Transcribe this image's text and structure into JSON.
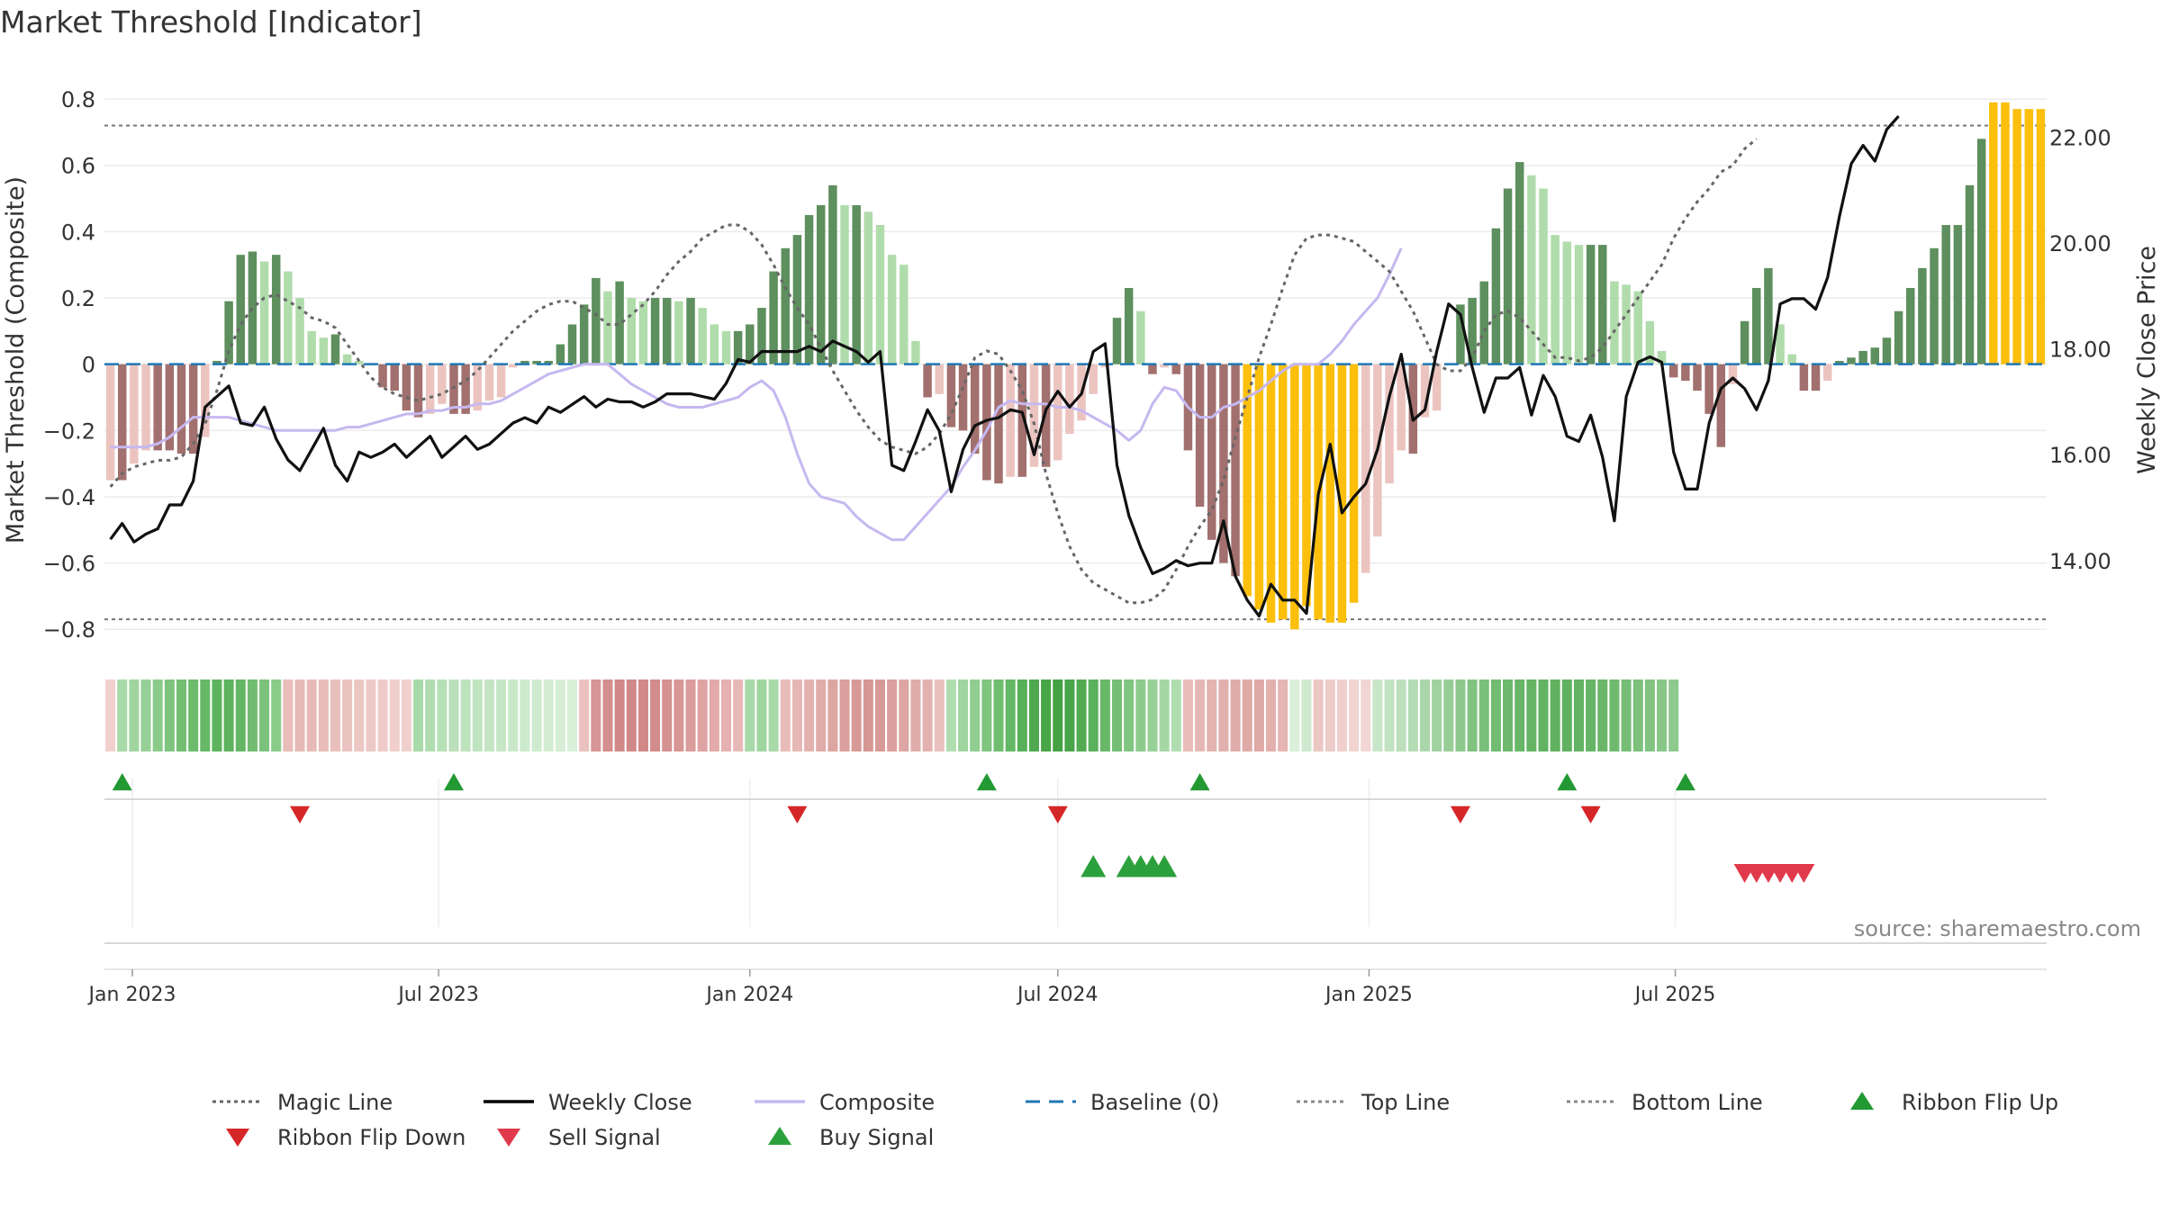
{
  "chart_data": {
    "type": "bar",
    "title": "Market Threshold [Indicator]",
    "ylabel_left": "Market Threshold (Composite)",
    "ylabel_right": "Weekly Close Price",
    "ylim_left": [
      -0.87,
      0.86
    ],
    "ylim_right": [
      12.26,
      23.1
    ],
    "yticks_left": [
      0.8,
      0.6,
      0.4,
      0.2,
      0,
      -0.2,
      -0.4,
      -0.6,
      -0.8
    ],
    "yticks_left_labels": [
      "0.8",
      "0.6",
      "0.4",
      "0.2",
      "0",
      "−0.2",
      "−0.4",
      "−0.6",
      "−0.8"
    ],
    "yticks_right": [
      22,
      20,
      18,
      16,
      14
    ],
    "yticks_right_labels": [
      "22.00",
      "20.00",
      "18.00",
      "16.00",
      "14.00"
    ],
    "x_start": "2022-12-19",
    "x_step_days": 7,
    "x_ticks": [
      {
        "date": "2023-01-01",
        "label": "Jan 2023"
      },
      {
        "date": "2023-07-01",
        "label": "Jul 2023"
      },
      {
        "date": "2024-01-01",
        "label": "Jan 2024"
      },
      {
        "date": "2024-07-01",
        "label": "Jul 2024"
      },
      {
        "date": "2025-01-01",
        "label": "Jan 2025"
      },
      {
        "date": "2025-07-01",
        "label": "Jul 2025"
      }
    ],
    "top_line": 0.72,
    "bottom_line": -0.77,
    "baseline": 0,
    "composite_bars": [
      -0.35,
      -0.35,
      -0.3,
      -0.26,
      -0.26,
      -0.26,
      -0.27,
      -0.27,
      -0.22,
      0.01,
      0.19,
      0.33,
      0.34,
      0.31,
      0.33,
      0.28,
      0.2,
      0.1,
      0.08,
      0.09,
      0.03,
      0.01,
      0.0,
      -0.07,
      -0.08,
      -0.14,
      -0.16,
      -0.15,
      -0.12,
      -0.15,
      -0.15,
      -0.14,
      -0.11,
      -0.1,
      -0.01,
      0.01,
      0.01,
      0.01,
      0.06,
      0.12,
      0.18,
      0.26,
      0.22,
      0.25,
      0.2,
      0.19,
      0.2,
      0.2,
      0.19,
      0.2,
      0.17,
      0.12,
      0.1,
      0.1,
      0.12,
      0.17,
      0.28,
      0.35,
      0.39,
      0.45,
      0.48,
      0.54,
      0.48,
      0.48,
      0.46,
      0.42,
      0.33,
      0.3,
      0.07,
      -0.1,
      -0.09,
      -0.19,
      -0.2,
      -0.27,
      -0.35,
      -0.36,
      -0.34,
      -0.34,
      -0.31,
      -0.31,
      -0.29,
      -0.21,
      -0.17,
      -0.09,
      -0.01,
      0.14,
      0.23,
      0.16,
      -0.03,
      -0.01,
      -0.03,
      -0.26,
      -0.43,
      -0.53,
      -0.6,
      -0.64,
      -0.7,
      -0.74,
      -0.78,
      -0.77,
      -0.8,
      -0.73,
      -0.77,
      -0.78,
      -0.78,
      -0.72,
      -0.63,
      -0.52,
      -0.36,
      -0.26,
      -0.27,
      -0.16,
      -0.14,
      0.0,
      0.18,
      0.2,
      0.25,
      0.41,
      0.53,
      0.61,
      0.57,
      0.53,
      0.39,
      0.37,
      0.36,
      0.36,
      0.36,
      0.25,
      0.24,
      0.22,
      0.13,
      0.04,
      -0.04,
      -0.05,
      -0.08,
      -0.15,
      -0.25,
      -0.06,
      0.13,
      0.23,
      0.29,
      0.12,
      0.03,
      -0.08,
      -0.08,
      -0.05,
      0.01,
      0.02,
      0.04,
      0.05,
      0.08,
      0.16,
      0.23,
      0.29,
      0.35,
      0.42,
      0.42,
      0.54,
      0.68,
      0.79,
      0.79,
      0.77,
      0.77,
      0.77
    ],
    "bar_colors": {
      "strong_up": "#5e8f5e",
      "weak_up": "#b0dcab",
      "strong_down": "#a2706e",
      "weak_down": "#ebc4c0",
      "extreme": "#fbbf0c"
    },
    "weekly_close": [
      14.4,
      14.7,
      14.35,
      14.5,
      14.6,
      15.05,
      15.05,
      15.5,
      16.9,
      17.1,
      17.3,
      16.6,
      16.55,
      16.9,
      16.3,
      15.9,
      15.7,
      16.1,
      16.5,
      15.8,
      15.5,
      16.05,
      15.95,
      16.05,
      16.2,
      15.95,
      16.15,
      16.35,
      15.95,
      16.15,
      16.35,
      16.1,
      16.2,
      16.4,
      16.6,
      16.7,
      16.6,
      16.9,
      16.8,
      16.95,
      17.1,
      16.9,
      17.05,
      17.0,
      17.0,
      16.9,
      17.0,
      17.15,
      17.15,
      17.15,
      17.1,
      17.05,
      17.35,
      17.8,
      17.75,
      17.95,
      17.95,
      17.95,
      17.95,
      18.05,
      17.95,
      18.15,
      18.05,
      17.95,
      17.75,
      17.95,
      15.8,
      15.7,
      16.25,
      16.85,
      16.45,
      15.3,
      16.1,
      16.55,
      16.65,
      16.7,
      16.85,
      16.8,
      16.0,
      16.85,
      17.2,
      16.9,
      17.15,
      17.95,
      18.1,
      15.8,
      14.85,
      14.25,
      13.75,
      13.85,
      14.0,
      13.9,
      13.95,
      13.95,
      14.75,
      13.7,
      13.25,
      12.95,
      13.55,
      13.25,
      13.25,
      13.0,
      15.25,
      16.2,
      14.9,
      15.2,
      15.45,
      16.1,
      17.1,
      17.9,
      16.65,
      16.85,
      17.95,
      18.85,
      18.65,
      17.65,
      16.8,
      17.45,
      17.45,
      17.65,
      16.75,
      17.5,
      17.1,
      16.35,
      16.25,
      16.75,
      15.95,
      14.75,
      17.1,
      17.75,
      17.85,
      17.75,
      16.05,
      15.35,
      15.35,
      16.6,
      17.25,
      17.45,
      17.25,
      16.85,
      17.4,
      18.85,
      18.95,
      18.95,
      18.75,
      19.35,
      20.5,
      21.5,
      21.85,
      21.55,
      22.15,
      22.4
    ],
    "magic_line": [
      -0.37,
      -0.33,
      -0.31,
      -0.3,
      -0.29,
      -0.29,
      -0.28,
      -0.24,
      -0.18,
      -0.08,
      0.04,
      0.12,
      0.17,
      0.2,
      0.21,
      0.19,
      0.17,
      0.14,
      0.13,
      0.11,
      0.06,
      0.01,
      -0.04,
      -0.07,
      -0.09,
      -0.1,
      -0.11,
      -0.1,
      -0.09,
      -0.07,
      -0.05,
      -0.02,
      0.02,
      0.06,
      0.1,
      0.13,
      0.16,
      0.18,
      0.19,
      0.19,
      0.17,
      0.15,
      0.12,
      0.12,
      0.15,
      0.18,
      0.22,
      0.27,
      0.31,
      0.34,
      0.38,
      0.4,
      0.42,
      0.42,
      0.4,
      0.36,
      0.3,
      0.23,
      0.17,
      0.12,
      0.05,
      -0.02,
      -0.08,
      -0.14,
      -0.19,
      -0.23,
      -0.25,
      -0.26,
      -0.27,
      -0.25,
      -0.21,
      -0.15,
      -0.07,
      0.02,
      0.04,
      0.03,
      -0.02,
      -0.08,
      -0.18,
      -0.33,
      -0.45,
      -0.55,
      -0.62,
      -0.66,
      -0.68,
      -0.7,
      -0.72,
      -0.72,
      -0.71,
      -0.68,
      -0.62,
      -0.55,
      -0.49,
      -0.44,
      -0.35,
      -0.22,
      -0.1,
      0.02,
      0.12,
      0.23,
      0.33,
      0.38,
      0.39,
      0.39,
      0.38,
      0.37,
      0.34,
      0.31,
      0.28,
      0.22,
      0.16,
      0.08,
      0.0,
      -0.02,
      -0.02,
      0.02,
      0.1,
      0.15,
      0.16,
      0.14,
      0.1,
      0.06,
      0.02,
      0.02,
      0.01,
      0.02,
      0.05,
      0.1,
      0.15,
      0.2,
      0.25,
      0.3,
      0.38,
      0.44,
      0.49,
      0.53,
      0.58,
      0.6,
      0.65,
      0.68
    ],
    "composite_line": [
      -0.25,
      -0.25,
      -0.25,
      -0.25,
      -0.24,
      -0.22,
      -0.19,
      -0.16,
      -0.16,
      -0.16,
      -0.16,
      -0.17,
      -0.18,
      -0.19,
      -0.2,
      -0.2,
      -0.2,
      -0.2,
      -0.2,
      -0.2,
      -0.19,
      -0.19,
      -0.18,
      -0.17,
      -0.16,
      -0.15,
      -0.15,
      -0.14,
      -0.14,
      -0.13,
      -0.13,
      -0.12,
      -0.12,
      -0.11,
      -0.09,
      -0.07,
      -0.05,
      -0.03,
      -0.02,
      -0.01,
      0.0,
      0.0,
      0.0,
      -0.03,
      -0.06,
      -0.08,
      -0.1,
      -0.12,
      -0.13,
      -0.13,
      -0.13,
      -0.12,
      -0.11,
      -0.1,
      -0.07,
      -0.05,
      -0.08,
      -0.16,
      -0.27,
      -0.36,
      -0.4,
      -0.41,
      -0.42,
      -0.46,
      -0.49,
      -0.51,
      -0.53,
      -0.53,
      -0.49,
      -0.45,
      -0.41,
      -0.37,
      -0.31,
      -0.26,
      -0.2,
      -0.13,
      -0.11,
      -0.12,
      -0.12,
      -0.12,
      -0.13,
      -0.13,
      -0.14,
      -0.16,
      -0.18,
      -0.2,
      -0.23,
      -0.2,
      -0.12,
      -0.07,
      -0.08,
      -0.13,
      -0.16,
      -0.16,
      -0.13,
      -0.12,
      -0.1,
      -0.08,
      -0.05,
      -0.02,
      0.0,
      0.0,
      0.0,
      0.03,
      0.07,
      0.12,
      0.16,
      0.2,
      0.27,
      0.35
    ],
    "ribbon_colors": [
      "#f2d0ce",
      "#a8d9a8",
      "#a0d5a0",
      "#96d096",
      "#8acb8a",
      "#7ec47e",
      "#72be72",
      "#6cbc6c",
      "#66b866",
      "#5eb45e",
      "#5eb45e",
      "#64b664",
      "#70bc70",
      "#7cc27c",
      "#8acb8a",
      "#e8bdba",
      "#e7bab7",
      "#e7bab7",
      "#e8bcb9",
      "#e9bfbc",
      "#eac2bf",
      "#ecc6c3",
      "#edc9c6",
      "#eecbc8",
      "#efcecb",
      "#f0d0cd",
      "#a8d9a8",
      "#b0ddb0",
      "#b6e0b6",
      "#badfba",
      "#bde3bd",
      "#c0e4c0",
      "#c3e5c3",
      "#c6e7c6",
      "#c9e8c9",
      "#cceacc",
      "#cfebcf",
      "#d2edd2",
      "#d5eed5",
      "#d8f0d8",
      "#eac1be",
      "#d89595",
      "#d48e8e",
      "#d18888",
      "#d18888",
      "#d18888",
      "#d38c8c",
      "#d69191",
      "#d99696",
      "#dc9c9c",
      "#dfa3a3",
      "#e2aaaa",
      "#e5b1b1",
      "#e8b8b8",
      "#a8d9a8",
      "#a0d5a0",
      "#a8d9a8",
      "#e8bcb9",
      "#e6b8b5",
      "#e3b2af",
      "#e0aca9",
      "#dda6a3",
      "#daa09d",
      "#d89a97",
      "#d69794",
      "#d89a97",
      "#daa09d",
      "#dda6a3",
      "#e0aca9",
      "#e3b2af",
      "#eac1be",
      "#b0ddb0",
      "#a0d5a0",
      "#90cd90",
      "#80c580",
      "#70bd70",
      "#64b764",
      "#58b058",
      "#4ea94e",
      "#48a548",
      "#44a244",
      "#48a548",
      "#52ab52",
      "#5cb15c",
      "#68b868",
      "#74bf74",
      "#80c580",
      "#8ccb8c",
      "#98d198",
      "#a4d7a4",
      "#b0ddb0",
      "#e8bcb9",
      "#e6b8b5",
      "#e4b4b1",
      "#e2b0ad",
      "#e0aca9",
      "#dfa9a6",
      "#dfa9a6",
      "#e2b0ad",
      "#e5b6b3",
      "#d9efd9",
      "#cfe9cf",
      "#ebc7c4",
      "#edcbc8",
      "#efcfcc",
      "#f1d3d0",
      "#f2d6d3",
      "#c8e6c8",
      "#c2e3c2",
      "#bce0bc",
      "#b4dcb4",
      "#aad7aa",
      "#a0d2a0",
      "#96cd96",
      "#8cc88c",
      "#82c382",
      "#7abf7a",
      "#72bb72",
      "#6cb86c",
      "#68b668",
      "#64b464",
      "#62b362",
      "#60b260",
      "#60b260",
      "#62b362",
      "#66b566",
      "#6ab76a",
      "#70ba70",
      "#76bd76",
      "#7cc07c",
      "#82c382",
      "#88c688",
      "#8ec98e"
    ],
    "ribbon_flip_up": [
      "2022-12-26",
      "2023-07-10",
      "2024-05-20",
      "2024-09-23",
      "2025-04-28",
      "2025-07-07"
    ],
    "ribbon_flip_down": [
      "2023-04-10",
      "2024-01-29",
      "2024-07-01",
      "2025-02-24",
      "2025-05-12"
    ],
    "buy_signal": [
      "2024-07-22",
      "2024-08-12",
      "2024-08-19",
      "2024-08-26",
      "2024-09-02"
    ],
    "sell_signal": [
      "2025-08-11",
      "2025-08-18",
      "2025-08-25",
      "2025-09-01",
      "2025-09-08",
      "2025-09-15"
    ],
    "legend": [
      {
        "label": "Magic Line",
        "style": "dotted",
        "color": "#666666"
      },
      {
        "label": "Weekly Close",
        "style": "solid",
        "color": "#000000"
      },
      {
        "label": "Composite",
        "style": "solid",
        "color": "#c6b8f0"
      },
      {
        "label": "Baseline (0)",
        "style": "dashed",
        "color": "#1f77b4"
      },
      {
        "label": "Top Line",
        "style": "dotted",
        "color": "#888888"
      },
      {
        "label": "Bottom Line",
        "style": "dotted",
        "color": "#888888"
      },
      {
        "label": "Ribbon Flip Up",
        "style": "triangle-up",
        "color": "#229933"
      },
      {
        "label": "Ribbon Flip Down",
        "style": "triangle-down",
        "color": "#d62728"
      },
      {
        "label": "Sell Signal",
        "style": "triangle-down",
        "color": "#e0394b"
      },
      {
        "label": "Buy Signal",
        "style": "triangle-up",
        "color": "#2ca03c"
      }
    ],
    "legend_placement": "bottom",
    "source": "source: sharemaestro.com",
    "grid": true
  }
}
